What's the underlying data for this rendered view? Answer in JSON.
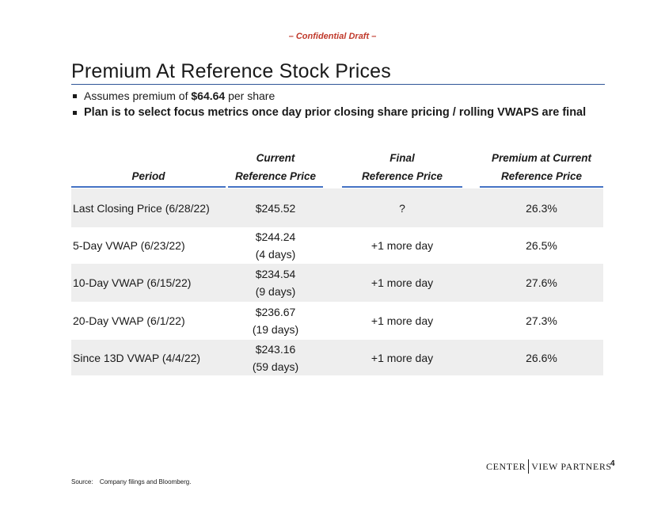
{
  "confidential": "– Confidential Draft –",
  "title": "Premium At Reference Stock Prices",
  "bullets": {
    "b1_pre": "Assumes premium of ",
    "b1_value": "$64.64",
    "b1_post": " per share",
    "b2": "Plan is to select focus metrics once day prior closing share pricing / rolling VWAPS are final"
  },
  "table": {
    "headers": {
      "period": "Period",
      "current_1": "Current",
      "current_2": "Reference Price",
      "final_1": "Final",
      "final_2": "Reference Price",
      "premium_1": "Premium at Current",
      "premium_2": "Reference Price"
    },
    "rows": [
      {
        "period": "Last Closing Price (6/28/22)",
        "current": "$245.52",
        "days": "",
        "final": "?",
        "premium": "26.3%"
      },
      {
        "period": "5-Day VWAP (6/23/22)",
        "current": "$244.24",
        "days": "(4 days)",
        "final": "+1 more day",
        "premium": "26.5%"
      },
      {
        "period": "10-Day VWAP (6/15/22)",
        "current": "$234.54",
        "days": "(9 days)",
        "final": "+1 more day",
        "premium": "27.6%"
      },
      {
        "period": "20-Day VWAP (6/1/22)",
        "current": "$236.67",
        "days": "(19 days)",
        "final": "+1 more day",
        "premium": "27.3%"
      },
      {
        "period": "Since 13D VWAP (4/4/22)",
        "current": "$243.16",
        "days": "(59 days)",
        "final": "+1 more day",
        "premium": "26.6%"
      }
    ]
  },
  "logo": {
    "left": "Center",
    "right": "view Partners"
  },
  "page_number": "4",
  "source": {
    "label": "Source:",
    "text": "Company filings and Bloomberg."
  }
}
